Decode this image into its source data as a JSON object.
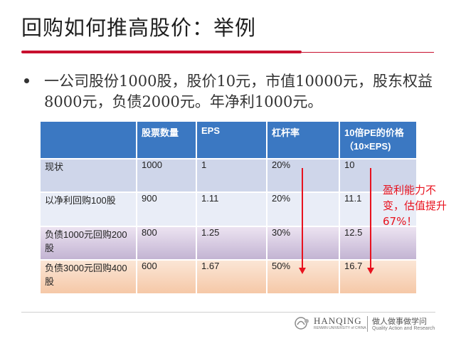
{
  "title": "回购如何推高股价：举例",
  "bullet": "一公司股份1000股，股价10元，市值10000元，股东权益8000元，负债2000元。年净利1000元。",
  "table": {
    "headers": [
      "",
      "股票数量",
      "EPS",
      "杠杆率",
      "10倍PE的价格（10×EPS)"
    ],
    "rows": [
      [
        "现状",
        "1000",
        "1",
        "20%",
        "10"
      ],
      [
        "以净利回购100股",
        "900",
        "1.11",
        "20%",
        "11.1"
      ],
      [
        "负债1000元回购200股",
        "800",
        "1.25",
        "30%",
        "12.5"
      ],
      [
        "负债3000元回购400股",
        "600",
        "1.67",
        "50%",
        "16.7"
      ]
    ]
  },
  "note": "盈利能力不变，估值提升67%！",
  "footer": {
    "brand": "HANQING",
    "brand_sub": "RENMIN UNIVERSITY of CHINA",
    "motto_cn": "做人做事做学问",
    "motto_en": "Quality Action and Research"
  },
  "colors": {
    "accent_red": "#c8102e",
    "header_blue": "#3b78c2",
    "arrow_red": "#e8121e"
  }
}
